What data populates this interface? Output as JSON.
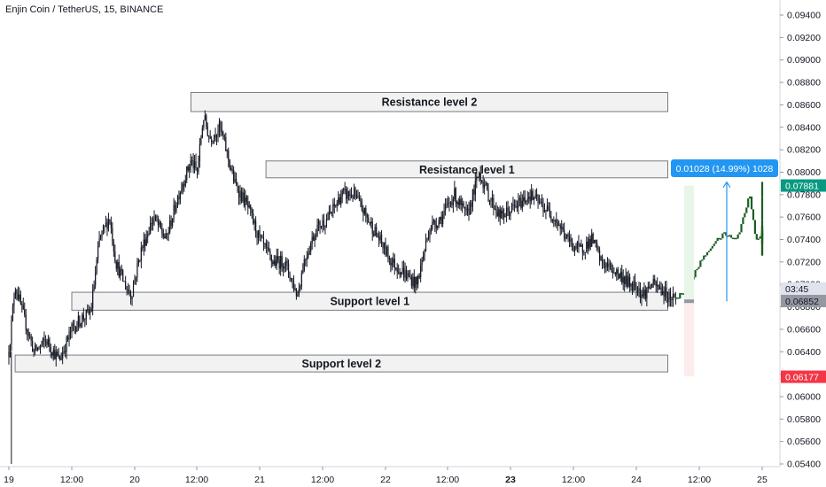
{
  "header": {
    "title": "Enjin Coin / TetherUS, 15, BINANCE"
  },
  "colors": {
    "candle": "#131722",
    "projection": "#1b5e20",
    "zone_fill": "#f2f2f2",
    "zone_stroke": "#787b86",
    "accent_blue": "#2196f3",
    "tag_green": "#089981",
    "tag_grey": "#9598a1",
    "tag_red": "#f23645",
    "target_fill": "#e8f5e9",
    "stop_fill": "#fdecec"
  },
  "chart_data": {
    "type": "candlestick",
    "x_ticks": [
      "19",
      "12:00",
      "20",
      "12:00",
      "21",
      "12:00",
      "22",
      "12:00",
      "23",
      "12:00",
      "24",
      "12:00",
      "25"
    ],
    "y_ticks": [
      "0.09400",
      "0.09200",
      "0.09000",
      "0.08800",
      "0.08600",
      "0.08400",
      "0.08200",
      "0.08000",
      "0.07800",
      "0.07600",
      "0.07400",
      "0.07200",
      "0.07000",
      "0.06800",
      "0.06600",
      "0.06400",
      "0.06200",
      "0.06000",
      "0.05800",
      "0.05600",
      "0.05400"
    ],
    "ylim": [
      0.054,
      0.095
    ],
    "zones": [
      {
        "label": "Resistance level 2",
        "top": 0.0871,
        "bottom": 0.0854,
        "x_start": 20.45,
        "x_end": 24.25
      },
      {
        "label": "Resistance level 1",
        "top": 0.081,
        "bottom": 0.0795,
        "x_start": 21.05,
        "x_end": 24.25
      },
      {
        "label": "Support level 1",
        "top": 0.0693,
        "bottom": 0.0677,
        "x_start": 19.5,
        "x_end": 24.25
      },
      {
        "label": "Support level 2",
        "top": 0.0637,
        "bottom": 0.0622,
        "x_start": 19.05,
        "x_end": 24.25
      }
    ],
    "price_path": [
      [
        19.0,
        0.064
      ],
      [
        19.05,
        0.07
      ],
      [
        19.12,
        0.067
      ],
      [
        19.2,
        0.064
      ],
      [
        19.3,
        0.065
      ],
      [
        19.4,
        0.0632
      ],
      [
        19.5,
        0.066
      ],
      [
        19.58,
        0.067
      ],
      [
        19.65,
        0.0675
      ],
      [
        19.72,
        0.074
      ],
      [
        19.8,
        0.076
      ],
      [
        19.85,
        0.072
      ],
      [
        19.92,
        0.07
      ],
      [
        19.97,
        0.069
      ],
      [
        20.05,
        0.073
      ],
      [
        20.15,
        0.076
      ],
      [
        20.25,
        0.074
      ],
      [
        20.35,
        0.078
      ],
      [
        20.45,
        0.081
      ],
      [
        20.5,
        0.08
      ],
      [
        20.55,
        0.085
      ],
      [
        20.6,
        0.083
      ],
      [
        20.68,
        0.084
      ],
      [
        20.72,
        0.0825
      ],
      [
        20.8,
        0.079
      ],
      [
        20.9,
        0.077
      ],
      [
        21.0,
        0.074
      ],
      [
        21.1,
        0.072
      ],
      [
        21.2,
        0.072
      ],
      [
        21.3,
        0.069
      ],
      [
        21.35,
        0.072
      ],
      [
        21.45,
        0.075
      ],
      [
        21.55,
        0.076
      ],
      [
        21.65,
        0.078
      ],
      [
        21.75,
        0.078
      ],
      [
        21.85,
        0.076
      ],
      [
        21.95,
        0.074
      ],
      [
        22.05,
        0.072
      ],
      [
        22.15,
        0.071
      ],
      [
        22.25,
        0.07
      ],
      [
        22.35,
        0.075
      ],
      [
        22.45,
        0.076
      ],
      [
        22.55,
        0.078
      ],
      [
        22.65,
        0.076
      ],
      [
        22.75,
        0.08
      ],
      [
        22.82,
        0.078
      ],
      [
        22.92,
        0.076
      ],
      [
        23.05,
        0.077
      ],
      [
        23.15,
        0.078
      ],
      [
        23.25,
        0.077
      ],
      [
        23.35,
        0.076
      ],
      [
        23.45,
        0.074
      ],
      [
        23.55,
        0.073
      ],
      [
        23.65,
        0.074
      ],
      [
        23.72,
        0.072
      ],
      [
        23.85,
        0.071
      ],
      [
        23.95,
        0.07
      ],
      [
        24.0,
        0.07
      ],
      [
        24.05,
        0.069
      ],
      [
        24.12,
        0.07
      ],
      [
        24.2,
        0.0695
      ],
      [
        24.25,
        0.069
      ],
      [
        24.32,
        0.0688
      ]
    ],
    "projection_path": [
      [
        24.32,
        0.0688
      ],
      [
        24.4,
        0.0695
      ],
      [
        24.5,
        0.0718
      ],
      [
        24.6,
        0.0735
      ],
      [
        24.7,
        0.0745
      ],
      [
        24.8,
        0.074
      ],
      [
        24.9,
        0.078
      ],
      [
        24.95,
        0.074
      ],
      [
        25.05,
        0.0748
      ],
      [
        25.15,
        0.0735
      ],
      [
        25.2,
        0.0745
      ],
      [
        25.25,
        0.0752
      ],
      [
        25.3,
        0.0738
      ],
      [
        25.35,
        0.0725
      ],
      [
        25.42,
        0.077
      ],
      [
        25.5,
        0.079
      ]
    ],
    "position_tool": {
      "label": "0.01028 (14.99%) 1028",
      "entry": 0.0685,
      "target": 0.0788,
      "stop": 0.0618
    },
    "price_tags": [
      {
        "label": "0.07881",
        "value": 0.07881,
        "role": "target"
      },
      {
        "label": "03:45",
        "value": 0.06955,
        "role": "countdown"
      },
      {
        "label": "0.06852",
        "value": 0.06852,
        "role": "last"
      },
      {
        "label": "0.06177",
        "value": 0.06177,
        "role": "stop"
      }
    ]
  }
}
